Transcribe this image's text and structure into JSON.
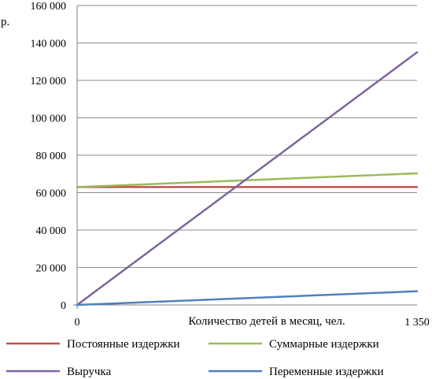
{
  "chart_data": {
    "type": "line",
    "y_unit": "р.",
    "xlabel": "Количество  детей в месяц, чел.",
    "x": [
      0,
      1350
    ],
    "x_tick_labels": [
      "0",
      "1 350"
    ],
    "ylim": [
      0,
      160000
    ],
    "y_ticks": [
      0,
      20000,
      40000,
      60000,
      80000,
      100000,
      120000,
      140000,
      160000
    ],
    "y_tick_labels": [
      "0",
      "20 000",
      "40 000",
      "60 000",
      "80 000",
      "100 000",
      "120 000",
      "140 000",
      "160 000"
    ],
    "grid": true,
    "legend_position": "bottom",
    "series": [
      {
        "name": "Постоянные издержки",
        "color": "#c0504d",
        "values": [
          63000,
          63000
        ]
      },
      {
        "name": "Суммарные издержки",
        "color": "#9bbb59",
        "values": [
          63000,
          70300
        ]
      },
      {
        "name": "Выручка",
        "color": "#8064a2",
        "values": [
          0,
          135000
        ]
      },
      {
        "name": "Переменные издержки",
        "color": "#4f81bd",
        "values": [
          0,
          7300
        ]
      }
    ]
  }
}
